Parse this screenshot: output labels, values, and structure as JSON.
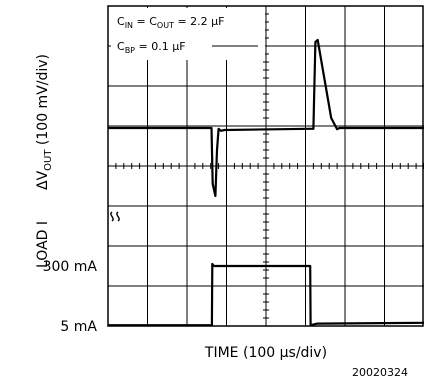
{
  "chart_data": {
    "type": "line",
    "annotation": {
      "line1_main": "C",
      "line1_sub1": "IN",
      "line1_mid": " = C",
      "line1_sub2": "OUT",
      "line1_tail": " = 2.2 μF",
      "line2_main": "C",
      "line2_sub": "BP",
      "line2_tail": " = 0.1 μF"
    },
    "ylabel_top": {
      "main": "ΔV",
      "sub": "OUT",
      "tail": " (100 mV/div)"
    },
    "ylabel_bottom": "LOAD I",
    "ytick_high": "300 mA",
    "ytick_low": "5 mA",
    "xlabel": "TIME (100 μs/div)",
    "figure_id": "20020324",
    "grid": {
      "x_divisions": 8,
      "y_divisions": 8
    },
    "series": [
      {
        "name": "ΔVOUT",
        "x": [
          0,
          2.62,
          2.65,
          2.72,
          2.76,
          2.8,
          2.86,
          2.95,
          5.1,
          5.2,
          5.25,
          5.31,
          5.65,
          5.8,
          5.86,
          6.4,
          8
        ],
        "y": [
          4.95,
          4.95,
          3.55,
          3.25,
          4.4,
          4.93,
          4.88,
          4.9,
          4.93,
          4.93,
          7.1,
          7.15,
          5.2,
          4.92,
          4.95,
          4.95,
          4.95
        ]
      },
      {
        "name": "LOAD I",
        "x": [
          0,
          2.63,
          2.64,
          2.68,
          5.12,
          5.13,
          5.3,
          8
        ],
        "y": [
          0.02,
          0.02,
          1.55,
          1.5,
          1.5,
          0.02,
          0.06,
          0.08
        ]
      }
    ]
  }
}
